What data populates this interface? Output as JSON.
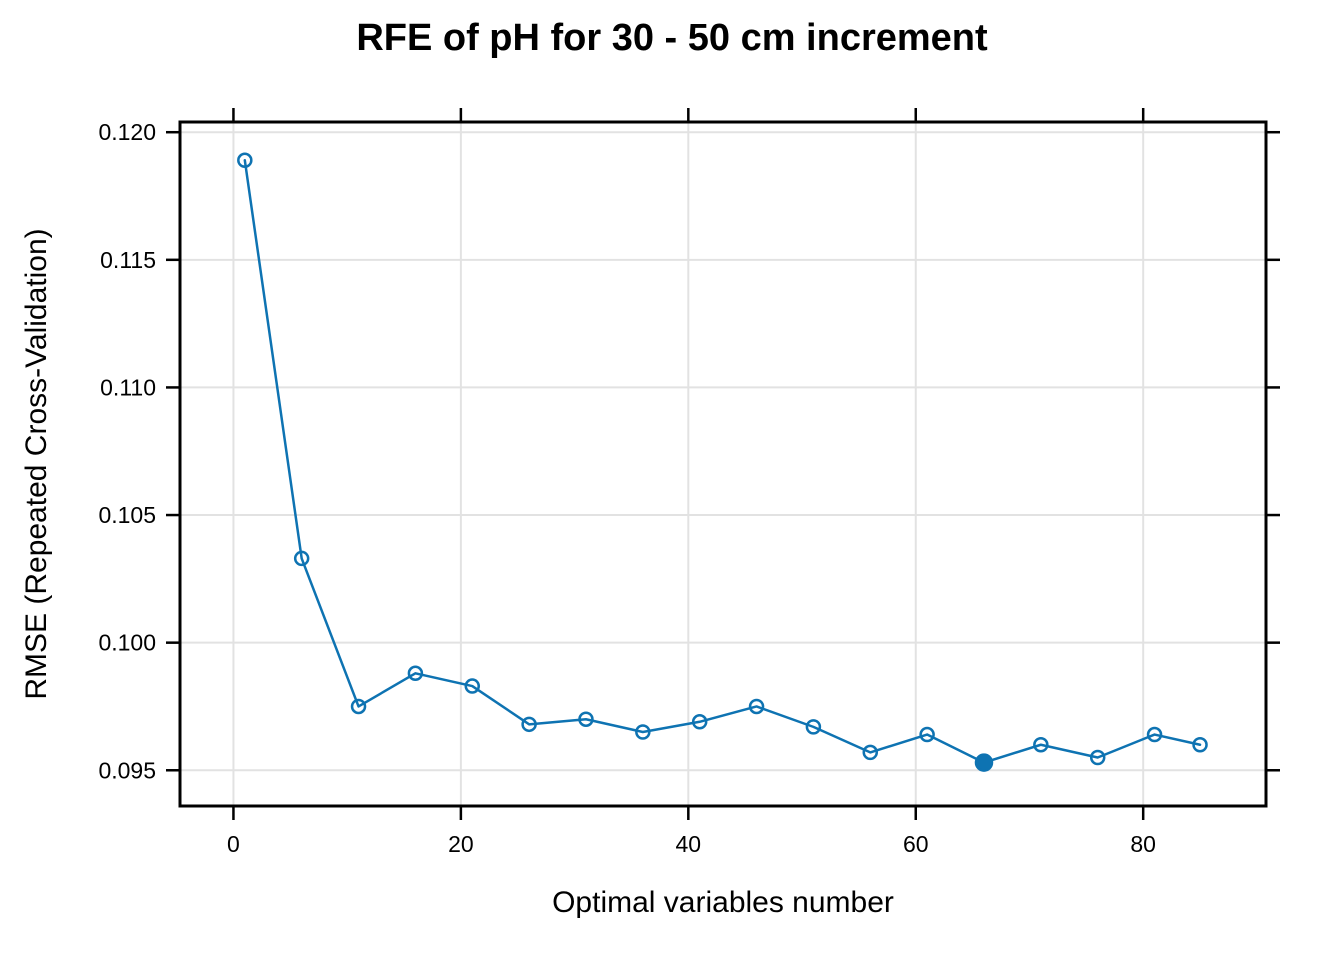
{
  "chart_data": {
    "type": "line",
    "title": "RFE of pH for 30 - 50 cm increment",
    "xlabel": "Optimal variables number",
    "ylabel": "RMSE (Repeated Cross-Validation)",
    "series": [
      {
        "name": "RMSE (Repeated Cross-Validation)",
        "x": [
          1,
          6,
          11,
          16,
          21,
          26,
          31,
          36,
          41,
          46,
          51,
          56,
          61,
          66,
          71,
          76,
          81,
          85
        ],
        "y": [
          0.1189,
          0.1033,
          0.0975,
          0.0988,
          0.0983,
          0.0968,
          0.097,
          0.0965,
          0.0969,
          0.0975,
          0.0967,
          0.0957,
          0.0964,
          0.0953,
          0.096,
          0.0955,
          0.0964,
          0.096
        ]
      }
    ],
    "best_point": {
      "x": 66,
      "y": 0.0953,
      "marker": "filled-circle"
    },
    "marker": "open-circle",
    "x_ticks": {
      "values": [
        0,
        20,
        40,
        60,
        80
      ],
      "labels": [
        "0",
        "20",
        "40",
        "60",
        "80"
      ]
    },
    "y_ticks": {
      "values": [
        0.095,
        0.1,
        0.105,
        0.11,
        0.115,
        0.12
      ],
      "labels": [
        "0.095",
        "0.100",
        "0.105",
        "0.110",
        "0.115",
        "0.120"
      ]
    },
    "xlim": [
      -4.7,
      90.8
    ],
    "ylim": [
      0.0936,
      0.1204
    ],
    "grid": true,
    "legend": "none",
    "colors": {
      "series": "#0E73B2",
      "grid": "#E2E2E2",
      "axis": "#000000",
      "background": "#FFFFFF"
    }
  }
}
